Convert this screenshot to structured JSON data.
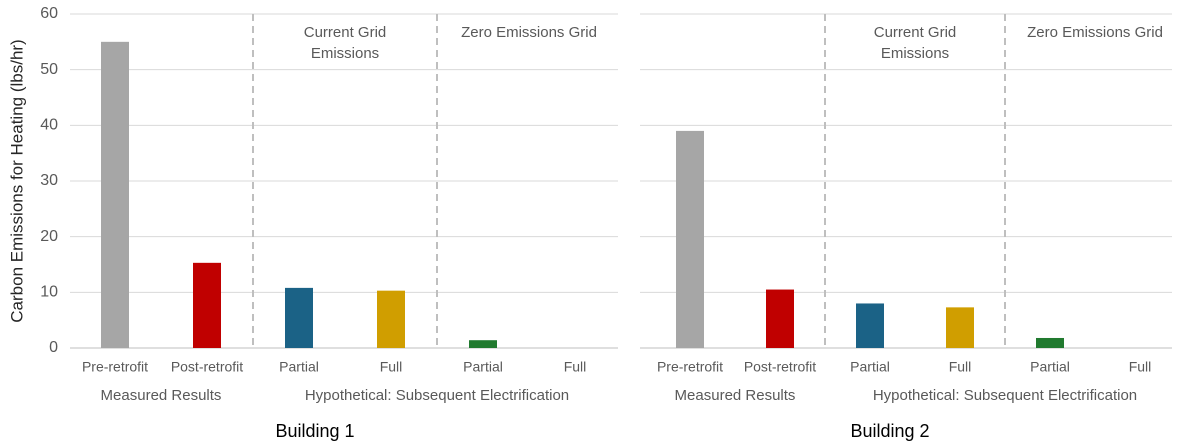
{
  "chart_data": [
    {
      "type": "bar",
      "title": "Building 1",
      "y_label": "Carbon Emissions for Heating (lbs/hr)",
      "ylim": [
        0,
        60
      ],
      "yticks": [
        0,
        10,
        20,
        30,
        40,
        50,
        60
      ],
      "grid": true,
      "show_ytick_labels": true,
      "groups": [
        {
          "label": "Measured Results",
          "subgroups": [
            {
              "categories": [
                "Pre-retrofit",
                "Post-retrofit"
              ],
              "values": [
                55,
                15.3
              ],
              "colors": [
                "#a6a6a6",
                "#c00000"
              ]
            }
          ]
        },
        {
          "label": "Hypothetical: Subsequent Electrification",
          "subgroups": [
            {
              "label": "Current Grid Emissions",
              "categories": [
                "Partial",
                "Full"
              ],
              "values": [
                10.8,
                10.3
              ],
              "colors": [
                "#1b6286",
                "#d09e00"
              ]
            },
            {
              "label": "Zero Emissions Grid",
              "categories": [
                "Partial",
                "Full"
              ],
              "values": [
                1.4,
                0
              ],
              "colors": [
                "#217a2f",
                "#548235"
              ]
            }
          ]
        }
      ]
    },
    {
      "type": "bar",
      "title": "Building 2",
      "ylim": [
        0,
        60
      ],
      "yticks": [
        0,
        10,
        20,
        30,
        40,
        50,
        60
      ],
      "grid": true,
      "show_ytick_labels": false,
      "groups": [
        {
          "label": "Measured Results",
          "subgroups": [
            {
              "categories": [
                "Pre-retrofit",
                "Post-retrofit"
              ],
              "values": [
                39,
                10.5
              ],
              "colors": [
                "#a6a6a6",
                "#c00000"
              ]
            }
          ]
        },
        {
          "label": "Hypothetical: Subsequent Electrification",
          "subgroups": [
            {
              "label": "Current Grid Emissions",
              "categories": [
                "Partial",
                "Full"
              ],
              "values": [
                8,
                7.3
              ],
              "colors": [
                "#1b6286",
                "#d09e00"
              ]
            },
            {
              "label": "Zero Emissions Grid",
              "categories": [
                "Partial",
                "Full"
              ],
              "values": [
                1.8,
                0
              ],
              "colors": [
                "#217a2f",
                "#548235"
              ]
            }
          ]
        }
      ]
    }
  ]
}
